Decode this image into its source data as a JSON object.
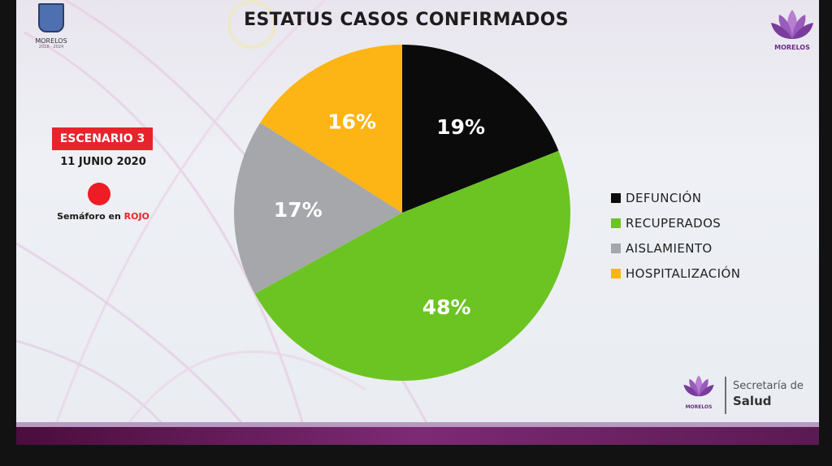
{
  "header": {
    "title": "ESTATUS CASOS CONFIRMADOS",
    "logo_left_text": "MORELOS",
    "logo_left_years": "2018 - 2024",
    "logo_right_text": "MORELOS"
  },
  "status": {
    "escenario": "ESCENARIO 3",
    "fecha": "11 JUNIO 2020",
    "semaforo_prefix": "Semáforo en ",
    "semaforo_color": "ROJO",
    "dot_color": "#ee1c25"
  },
  "footer": {
    "logo_text": "MORELOS",
    "secretaria": "Secretaría de",
    "salud": "Salud"
  },
  "chart_data": {
    "type": "pie",
    "title": "ESTATUS CASOS CONFIRMADOS",
    "labels": [
      "DEFUNCIÓN",
      "RECUPERADOS",
      "AISLAMIENTO",
      "HOSPITALIZACIÓN"
    ],
    "values": [
      19,
      48,
      17,
      16
    ],
    "value_labels": [
      "19%",
      "48%",
      "17%",
      "16%"
    ],
    "colors": [
      "#0b0b0b",
      "#6cc423",
      "#a6a7ab",
      "#fdb515"
    ],
    "legend_position": "right"
  }
}
